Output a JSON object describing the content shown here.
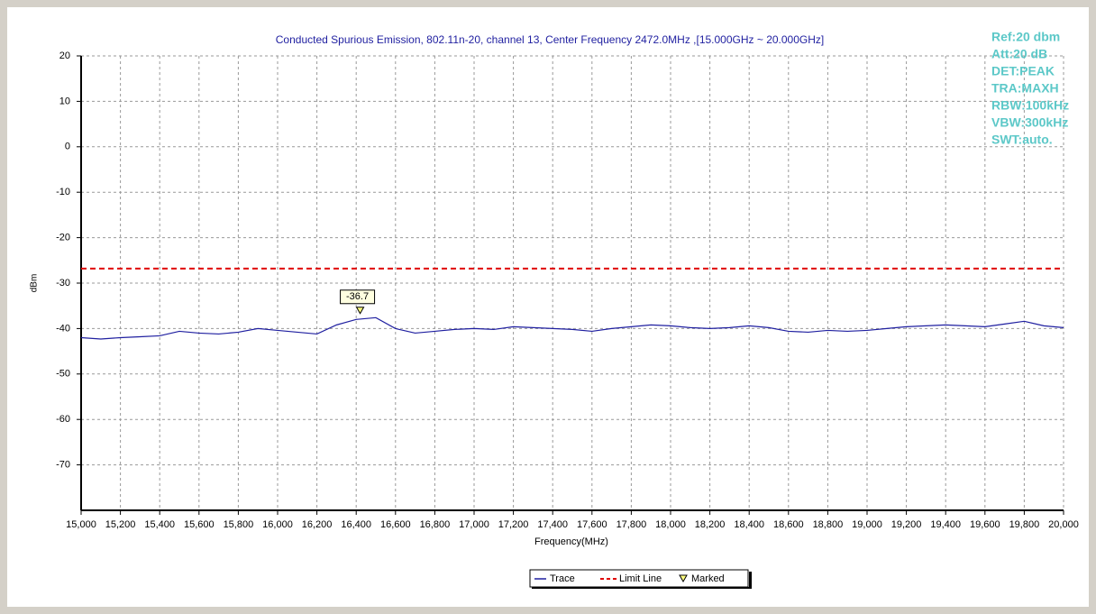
{
  "chart_data": {
    "type": "line",
    "title": "Conducted Spurious Emission, 802.11n-20, channel 13, Center Frequency 2472.0MHz ,[15.000GHz ~ 20.000GHz]",
    "x_label": "Frequency(MHz)",
    "y_label": "dBm",
    "annotations": [
      "Ref:20 dbm",
      "Att:20 dB",
      "DET:PEAK",
      "TRA:MAXH",
      "RBW:100kHz",
      "VBW:300kHz",
      "SWT:auto."
    ],
    "x": [
      15000,
      15100,
      15200,
      15300,
      15400,
      15500,
      15600,
      15700,
      15800,
      15900,
      16000,
      16100,
      16200,
      16300,
      16400,
      16500,
      16600,
      16700,
      16800,
      16900,
      17000,
      17100,
      17200,
      17300,
      17400,
      17500,
      17600,
      17700,
      17800,
      17900,
      18000,
      18100,
      18200,
      18300,
      18400,
      18500,
      18600,
      18700,
      18800,
      18900,
      19000,
      19100,
      19200,
      19300,
      19400,
      19500,
      19600,
      19700,
      19800,
      19900,
      20000
    ],
    "series": [
      {
        "name": "Trace",
        "color": "#1f1fa0",
        "values": [
          -42.0,
          -42.3,
          -42.0,
          -41.8,
          -41.6,
          -40.6,
          -41.0,
          -41.2,
          -40.8,
          -40.0,
          -40.4,
          -40.8,
          -41.2,
          -39.2,
          -38.0,
          -37.6,
          -40.0,
          -41.0,
          -40.6,
          -40.2,
          -40.0,
          -40.2,
          -39.6,
          -39.8,
          -40.0,
          -40.2,
          -40.6,
          -40.0,
          -39.6,
          -39.2,
          -39.4,
          -39.8,
          -40.0,
          -39.8,
          -39.4,
          -39.8,
          -40.6,
          -40.8,
          -40.4,
          -40.6,
          -40.4,
          -40.0,
          -39.6,
          -39.4,
          -39.2,
          -39.4,
          -39.6,
          -39.0,
          -38.4,
          -39.4,
          -39.8
        ]
      }
    ],
    "limit_line": {
      "name": "Limit Line",
      "color": "#e00000",
      "value": -26.8
    },
    "marker": {
      "name": "Marked",
      "x": 16420,
      "value": -36.7,
      "color": "#ffff80"
    },
    "xlim": [
      15000,
      20000
    ],
    "xticks": [
      {
        "value": 15000,
        "label": "15,000"
      },
      {
        "value": 15200,
        "label": "15,200"
      },
      {
        "value": 15400,
        "label": "15,400"
      },
      {
        "value": 15600,
        "label": "15,600"
      },
      {
        "value": 15800,
        "label": "15,800"
      },
      {
        "value": 16000,
        "label": "16,000"
      },
      {
        "value": 16200,
        "label": "16,200"
      },
      {
        "value": 16400,
        "label": "16,400"
      },
      {
        "value": 16600,
        "label": "16,600"
      },
      {
        "value": 16800,
        "label": "16,800"
      },
      {
        "value": 17000,
        "label": "17,000"
      },
      {
        "value": 17200,
        "label": "17,200"
      },
      {
        "value": 17400,
        "label": "17,400"
      },
      {
        "value": 17600,
        "label": "17,600"
      },
      {
        "value": 17800,
        "label": "17,800"
      },
      {
        "value": 18000,
        "label": "18,000"
      },
      {
        "value": 18200,
        "label": "18,200"
      },
      {
        "value": 18400,
        "label": "18,400"
      },
      {
        "value": 18600,
        "label": "18,600"
      },
      {
        "value": 18800,
        "label": "18,800"
      },
      {
        "value": 19000,
        "label": "19,000"
      },
      {
        "value": 19200,
        "label": "19,200"
      },
      {
        "value": 19400,
        "label": "19,400"
      },
      {
        "value": 19600,
        "label": "19,600"
      },
      {
        "value": 19800,
        "label": "19,800"
      },
      {
        "value": 20000,
        "label": "20,000"
      }
    ],
    "ylim": [
      -80,
      20
    ],
    "yticks": [
      20,
      10,
      0,
      -10,
      -20,
      -30,
      -40,
      -50,
      -60,
      -70
    ],
    "grid": true
  }
}
